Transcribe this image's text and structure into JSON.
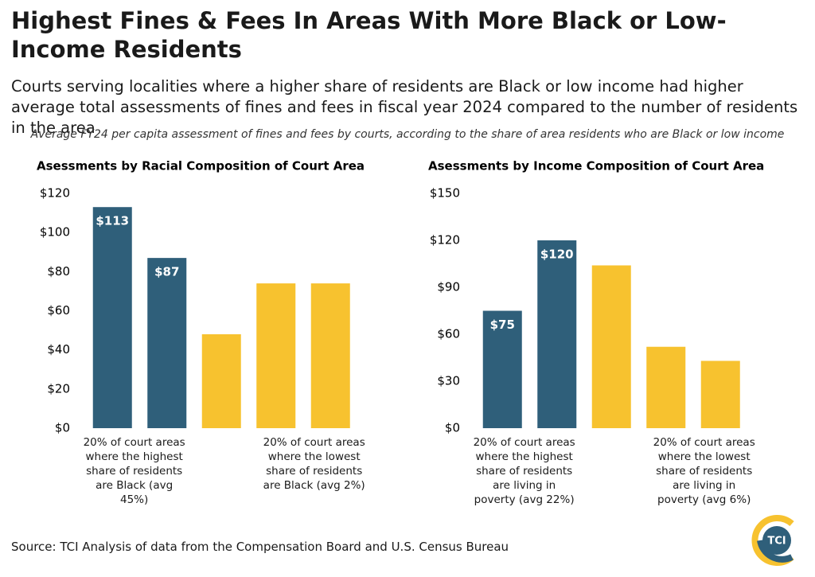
{
  "title": "Highest Fines & Fees In Areas With More Black or Low-Income Residents",
  "subtitle": "Courts serving localities where a higher share of residents are Black or low income had higher average total assessments of fines and fees in fiscal year 2024 compared to the number of residents in the area",
  "note": "Average FY24 per capita assessment of fines and fees by courts, according to the share of area residents who are Black or low income",
  "source": "Source: TCI Analysis of data from the Compensation Board and U.S. Census Bureau",
  "logo": "TCI",
  "chart_data": [
    {
      "type": "bar",
      "title": "Asessments by Racial Composition of Court Area",
      "categories": [
        "20% of court areas where the highest share of residents are Black (avg 45%)",
        null,
        null,
        null,
        "20% of court areas where the lowest share of residents are Black (avg 2%)"
      ],
      "values": [
        113,
        87,
        48,
        74,
        74
      ],
      "value_labels": [
        "$113",
        "$87",
        null,
        null,
        null
      ],
      "colors": [
        "#2f5f7a",
        "#2f5f7a",
        "#f7c22f",
        "#f7c22f",
        "#f7c22f"
      ],
      "ylim": [
        0,
        120
      ],
      "yticks": [
        {
          "value": 0,
          "label": "$0"
        },
        {
          "value": 20,
          "label": "$20"
        },
        {
          "value": 40,
          "label": "$40"
        },
        {
          "value": 60,
          "label": "$60"
        },
        {
          "value": 80,
          "label": "$80"
        },
        {
          "value": 100,
          "label": "$100"
        },
        {
          "value": 120,
          "label": "$120"
        }
      ],
      "grid": false
    },
    {
      "type": "bar",
      "title": "Asessments by Income Composition of Court Area",
      "categories": [
        "20% of court areas where the highest share of residents are living in poverty (avg 22%)",
        null,
        null,
        null,
        "20% of court areas where the lowest share of residents are living in poverty (avg 6%)"
      ],
      "values": [
        75,
        120,
        104,
        52,
        43
      ],
      "value_labels": [
        "$75",
        "$120",
        null,
        null,
        null
      ],
      "colors": [
        "#2f5f7a",
        "#2f5f7a",
        "#f7c22f",
        "#f7c22f",
        "#f7c22f"
      ],
      "ylim": [
        0,
        150
      ],
      "yticks": [
        {
          "value": 0,
          "label": "$0"
        },
        {
          "value": 30,
          "label": "$30"
        },
        {
          "value": 60,
          "label": "$60"
        },
        {
          "value": 90,
          "label": "$90"
        },
        {
          "value": 120,
          "label": "$120"
        },
        {
          "value": 150,
          "label": "$150"
        }
      ],
      "grid": false
    }
  ]
}
